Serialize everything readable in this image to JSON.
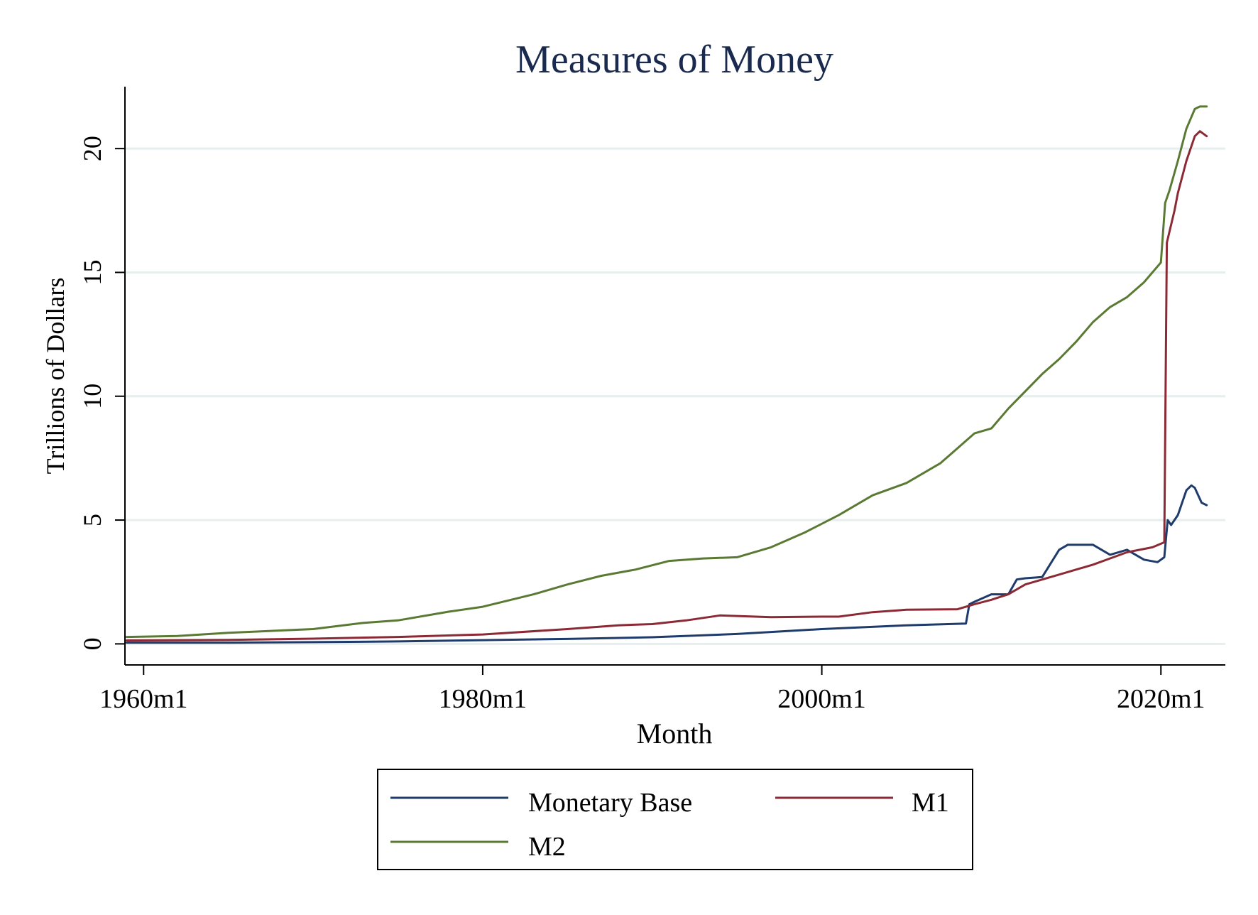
{
  "chart_data": {
    "type": "line",
    "title": "Measures of Money",
    "xlabel": "Month",
    "ylabel": "Trillions of Dollars",
    "xlim": [
      1958.9,
      2023.8
    ],
    "ylim": [
      -0.85,
      22.5
    ],
    "x_ticks": [
      {
        "value": 1960,
        "label": "1960m1"
      },
      {
        "value": 1980,
        "label": "1980m1"
      },
      {
        "value": 2000,
        "label": "2000m1"
      },
      {
        "value": 2020,
        "label": "2020m1"
      }
    ],
    "y_ticks": [
      {
        "value": 0,
        "label": "0"
      },
      {
        "value": 5,
        "label": "5"
      },
      {
        "value": 10,
        "label": "10"
      },
      {
        "value": 15,
        "label": "15"
      },
      {
        "value": 20,
        "label": "20"
      }
    ],
    "grid": "horizontal",
    "legend_position": "bottom",
    "colors": {
      "title": "#1a2a4f",
      "grid": "#e6eeee",
      "axis": "#000000"
    },
    "series": [
      {
        "name": "Monetary Base",
        "color": "#1f3b6b",
        "points": [
          [
            1959.0,
            0.05
          ],
          [
            1965.0,
            0.05
          ],
          [
            1970.0,
            0.07
          ],
          [
            1975.0,
            0.1
          ],
          [
            1980.0,
            0.15
          ],
          [
            1985.0,
            0.2
          ],
          [
            1990.0,
            0.27
          ],
          [
            1995.0,
            0.4
          ],
          [
            2000.0,
            0.6
          ],
          [
            2005.0,
            0.75
          ],
          [
            2008.5,
            0.82
          ],
          [
            2008.7,
            1.6
          ],
          [
            2009.0,
            1.7
          ],
          [
            2010.0,
            2.0
          ],
          [
            2011.0,
            2.0
          ],
          [
            2011.5,
            2.6
          ],
          [
            2012.0,
            2.65
          ],
          [
            2013.0,
            2.7
          ],
          [
            2014.0,
            3.8
          ],
          [
            2014.5,
            4.0
          ],
          [
            2015.0,
            4.0
          ],
          [
            2016.0,
            4.0
          ],
          [
            2017.0,
            3.6
          ],
          [
            2018.0,
            3.8
          ],
          [
            2019.0,
            3.4
          ],
          [
            2019.8,
            3.3
          ],
          [
            2020.2,
            3.5
          ],
          [
            2020.4,
            5.0
          ],
          [
            2020.6,
            4.8
          ],
          [
            2021.0,
            5.2
          ],
          [
            2021.5,
            6.2
          ],
          [
            2021.8,
            6.4
          ],
          [
            2022.0,
            6.3
          ],
          [
            2022.4,
            5.7
          ],
          [
            2022.7,
            5.6
          ]
        ]
      },
      {
        "name": "M1",
        "color": "#8b2a35",
        "points": [
          [
            1959.0,
            0.14
          ],
          [
            1965.0,
            0.16
          ],
          [
            1970.0,
            0.21
          ],
          [
            1975.0,
            0.28
          ],
          [
            1980.0,
            0.38
          ],
          [
            1985.0,
            0.6
          ],
          [
            1988.0,
            0.75
          ],
          [
            1990.0,
            0.8
          ],
          [
            1992.0,
            0.95
          ],
          [
            1994.0,
            1.15
          ],
          [
            1997.0,
            1.08
          ],
          [
            2000.0,
            1.1
          ],
          [
            2001.0,
            1.1
          ],
          [
            2003.0,
            1.28
          ],
          [
            2005.0,
            1.38
          ],
          [
            2008.0,
            1.4
          ],
          [
            2009.0,
            1.6
          ],
          [
            2010.0,
            1.78
          ],
          [
            2011.0,
            2.0
          ],
          [
            2012.0,
            2.4
          ],
          [
            2014.0,
            2.8
          ],
          [
            2016.0,
            3.2
          ],
          [
            2018.0,
            3.7
          ],
          [
            2019.5,
            3.9
          ],
          [
            2020.2,
            4.1
          ],
          [
            2020.35,
            16.2
          ],
          [
            2020.8,
            17.5
          ],
          [
            2021.0,
            18.2
          ],
          [
            2021.5,
            19.5
          ],
          [
            2022.0,
            20.5
          ],
          [
            2022.3,
            20.7
          ],
          [
            2022.7,
            20.5
          ]
        ]
      },
      {
        "name": "M2",
        "color": "#5a7a34",
        "points": [
          [
            1959.0,
            0.28
          ],
          [
            1962.0,
            0.32
          ],
          [
            1965.0,
            0.45
          ],
          [
            1970.0,
            0.6
          ],
          [
            1973.0,
            0.85
          ],
          [
            1975.0,
            0.95
          ],
          [
            1978.0,
            1.3
          ],
          [
            1980.0,
            1.5
          ],
          [
            1983.0,
            2.0
          ],
          [
            1985.0,
            2.4
          ],
          [
            1987.0,
            2.75
          ],
          [
            1989.0,
            3.0
          ],
          [
            1991.0,
            3.35
          ],
          [
            1993.0,
            3.45
          ],
          [
            1995.0,
            3.5
          ],
          [
            1997.0,
            3.9
          ],
          [
            1999.0,
            4.5
          ],
          [
            2001.0,
            5.2
          ],
          [
            2003.0,
            6.0
          ],
          [
            2005.0,
            6.5
          ],
          [
            2007.0,
            7.3
          ],
          [
            2008.0,
            7.9
          ],
          [
            2009.0,
            8.5
          ],
          [
            2010.0,
            8.7
          ],
          [
            2011.0,
            9.5
          ],
          [
            2012.0,
            10.2
          ],
          [
            2013.0,
            10.9
          ],
          [
            2014.0,
            11.5
          ],
          [
            2015.0,
            12.2
          ],
          [
            2016.0,
            13.0
          ],
          [
            2017.0,
            13.6
          ],
          [
            2018.0,
            14.0
          ],
          [
            2019.0,
            14.6
          ],
          [
            2020.0,
            15.4
          ],
          [
            2020.25,
            17.8
          ],
          [
            2020.5,
            18.3
          ],
          [
            2021.0,
            19.5
          ],
          [
            2021.5,
            20.8
          ],
          [
            2022.0,
            21.6
          ],
          [
            2022.3,
            21.7
          ],
          [
            2022.7,
            21.7
          ]
        ]
      }
    ]
  }
}
